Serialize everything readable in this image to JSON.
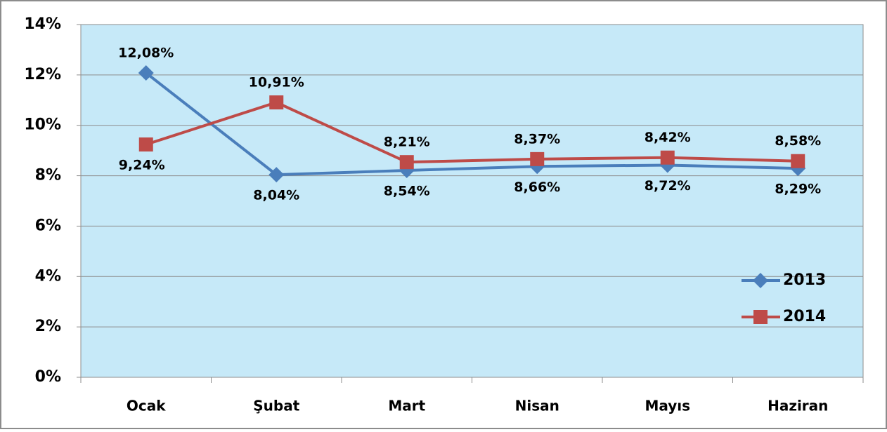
{
  "chart_data": {
    "type": "line",
    "categories": [
      "Ocak",
      "Şubat",
      "Mart",
      "Nisan",
      "Mayıs",
      "Haziran"
    ],
    "series": [
      {
        "name": "2013",
        "color": "#4a7ebb",
        "marker": "diamond",
        "values": [
          12.08,
          8.04,
          8.21,
          8.37,
          8.42,
          8.29
        ],
        "value_labels": [
          "12,08%",
          "8,04%",
          "8,21%",
          "8,37%",
          "8,42%",
          "8,29%"
        ]
      },
      {
        "name": "2014",
        "color": "#be4b48",
        "marker": "square",
        "values": [
          9.24,
          10.91,
          8.54,
          8.66,
          8.72,
          8.58
        ],
        "value_labels": [
          "9,24%",
          "10,91%",
          "8,54%",
          "8,66%",
          "8,72%",
          "8,58%"
        ]
      }
    ],
    "ylim": [
      0,
      14
    ],
    "yticks": [
      {
        "value": 0,
        "label": "0%"
      },
      {
        "value": 2,
        "label": "2%"
      },
      {
        "value": 4,
        "label": "4%"
      },
      {
        "value": 6,
        "label": "6%"
      },
      {
        "value": 8,
        "label": "8%"
      },
      {
        "value": 10,
        "label": "10%"
      },
      {
        "value": 12,
        "label": "12%"
      },
      {
        "value": 14,
        "label": "14%"
      }
    ],
    "grid": true,
    "legend": "right",
    "plot_background": "#c6e9f8"
  }
}
